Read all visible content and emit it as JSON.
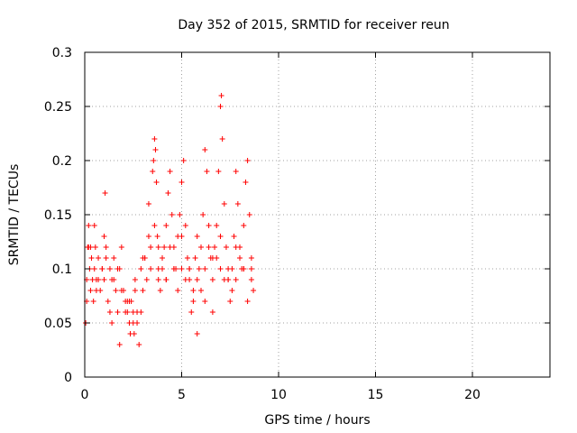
{
  "chart_data": {
    "type": "scatter",
    "title": "Day 352 of 2015, SRMTID for receiver reun",
    "xlabel": "GPS time / hours",
    "ylabel": "SRMTID / TECUs",
    "xlim": [
      0,
      24
    ],
    "ylim": [
      0,
      0.3
    ],
    "xticks": [
      0,
      5,
      10,
      15,
      20
    ],
    "xtick_labels": [
      "0",
      "5",
      "10",
      "15",
      "20"
    ],
    "yticks": [
      0,
      0.05,
      0.1,
      0.15,
      0.2,
      0.25,
      0.3
    ],
    "ytick_labels": [
      "0",
      "0.05",
      "0.1",
      "0.15",
      "0.2",
      "0.25",
      "0.3"
    ],
    "grid": true,
    "marker": "+",
    "series": [
      {
        "name": "SRMTID",
        "color": "#ff0000",
        "x": [
          0.05,
          0.1,
          0.15,
          0.2,
          0.25,
          0.3,
          0.35,
          0.4,
          0.45,
          0.5,
          0.55,
          0.6,
          0.7,
          0.8,
          0.9,
          1.0,
          1.05,
          1.1,
          1.2,
          1.3,
          1.4,
          1.5,
          1.6,
          1.7,
          1.8,
          1.9,
          2.0,
          2.1,
          2.2,
          2.3,
          2.35,
          2.4,
          2.5,
          2.55,
          2.6,
          2.7,
          2.8,
          2.9,
          3.0,
          3.1,
          3.2,
          3.3,
          3.4,
          3.5,
          3.55,
          3.6,
          3.65,
          3.7,
          3.75,
          3.8,
          3.9,
          4.0,
          4.1,
          4.2,
          4.3,
          4.4,
          4.5,
          4.6,
          4.7,
          4.8,
          4.9,
          5.0,
          5.1,
          5.2,
          5.3,
          5.4,
          5.5,
          5.6,
          5.7,
          5.8,
          5.9,
          6.0,
          6.1,
          6.2,
          6.3,
          6.4,
          6.5,
          6.6,
          6.7,
          6.8,
          6.9,
          7.0,
          7.05,
          7.1,
          7.2,
          7.3,
          7.4,
          7.5,
          7.6,
          7.7,
          7.8,
          7.9,
          8.0,
          8.1,
          8.2,
          8.3,
          8.4,
          8.5,
          8.6,
          8.7,
          0.1,
          0.3,
          0.5,
          0.7,
          0.9,
          1.1,
          1.3,
          1.5,
          1.7,
          1.9,
          2.1,
          2.3,
          2.5,
          2.7,
          2.9,
          3.1,
          3.3,
          3.6,
          3.8,
          4.0,
          4.2,
          4.4,
          4.6,
          4.8,
          5.0,
          5.2,
          5.4,
          5.6,
          5.8,
          6.0,
          6.2,
          6.4,
          6.6,
          6.8,
          7.0,
          7.2,
          7.4,
          7.6,
          7.8,
          8.0,
          8.2,
          8.4,
          8.6,
          0.2,
          0.6,
          1.0,
          1.4,
          1.8,
          2.2,
          2.6,
          3.0,
          3.4,
          3.8,
          4.2,
          4.6,
          5.0,
          5.4,
          5.8,
          6.2,
          6.6,
          7.0,
          7.4,
          7.8,
          8.2,
          8.6
        ],
        "y": [
          0.05,
          0.09,
          0.12,
          0.14,
          0.1,
          0.08,
          0.11,
          0.09,
          0.07,
          0.1,
          0.12,
          0.09,
          0.11,
          0.08,
          0.1,
          0.13,
          0.17,
          0.12,
          0.07,
          0.1,
          0.09,
          0.11,
          0.08,
          0.06,
          0.1,
          0.12,
          0.08,
          0.07,
          0.06,
          0.05,
          0.04,
          0.07,
          0.06,
          0.04,
          0.08,
          0.05,
          0.03,
          0.06,
          0.08,
          0.11,
          0.09,
          0.13,
          0.12,
          0.19,
          0.2,
          0.22,
          0.21,
          0.18,
          0.13,
          0.1,
          0.08,
          0.11,
          0.12,
          0.14,
          0.17,
          0.19,
          0.15,
          0.12,
          0.1,
          0.13,
          0.15,
          0.18,
          0.2,
          0.14,
          0.11,
          0.09,
          0.06,
          0.08,
          0.11,
          0.13,
          0.1,
          0.12,
          0.15,
          0.21,
          0.19,
          0.14,
          0.11,
          0.09,
          0.12,
          0.14,
          0.19,
          0.25,
          0.26,
          0.22,
          0.16,
          0.12,
          0.09,
          0.07,
          0.1,
          0.13,
          0.19,
          0.16,
          0.12,
          0.1,
          0.14,
          0.18,
          0.2,
          0.15,
          0.11,
          0.08,
          0.07,
          0.12,
          0.14,
          0.09,
          0.1,
          0.11,
          0.06,
          0.09,
          0.1,
          0.08,
          0.06,
          0.07,
          0.05,
          0.06,
          0.1,
          0.11,
          0.16,
          0.14,
          0.09,
          0.1,
          0.09,
          0.12,
          0.1,
          0.08,
          0.1,
          0.09,
          0.1,
          0.07,
          0.09,
          0.08,
          0.1,
          0.12,
          0.06,
          0.11,
          0.13,
          0.09,
          0.1,
          0.08,
          0.09,
          0.11,
          0.1,
          0.07,
          0.1,
          0.12,
          0.08,
          0.09,
          0.05,
          0.03,
          0.07,
          0.09,
          0.11,
          0.1,
          0.12,
          0.09,
          0.1,
          0.13,
          0.1,
          0.04,
          0.07,
          0.11,
          0.1,
          0.09,
          0.12,
          0.1,
          0.09
        ]
      }
    ]
  }
}
